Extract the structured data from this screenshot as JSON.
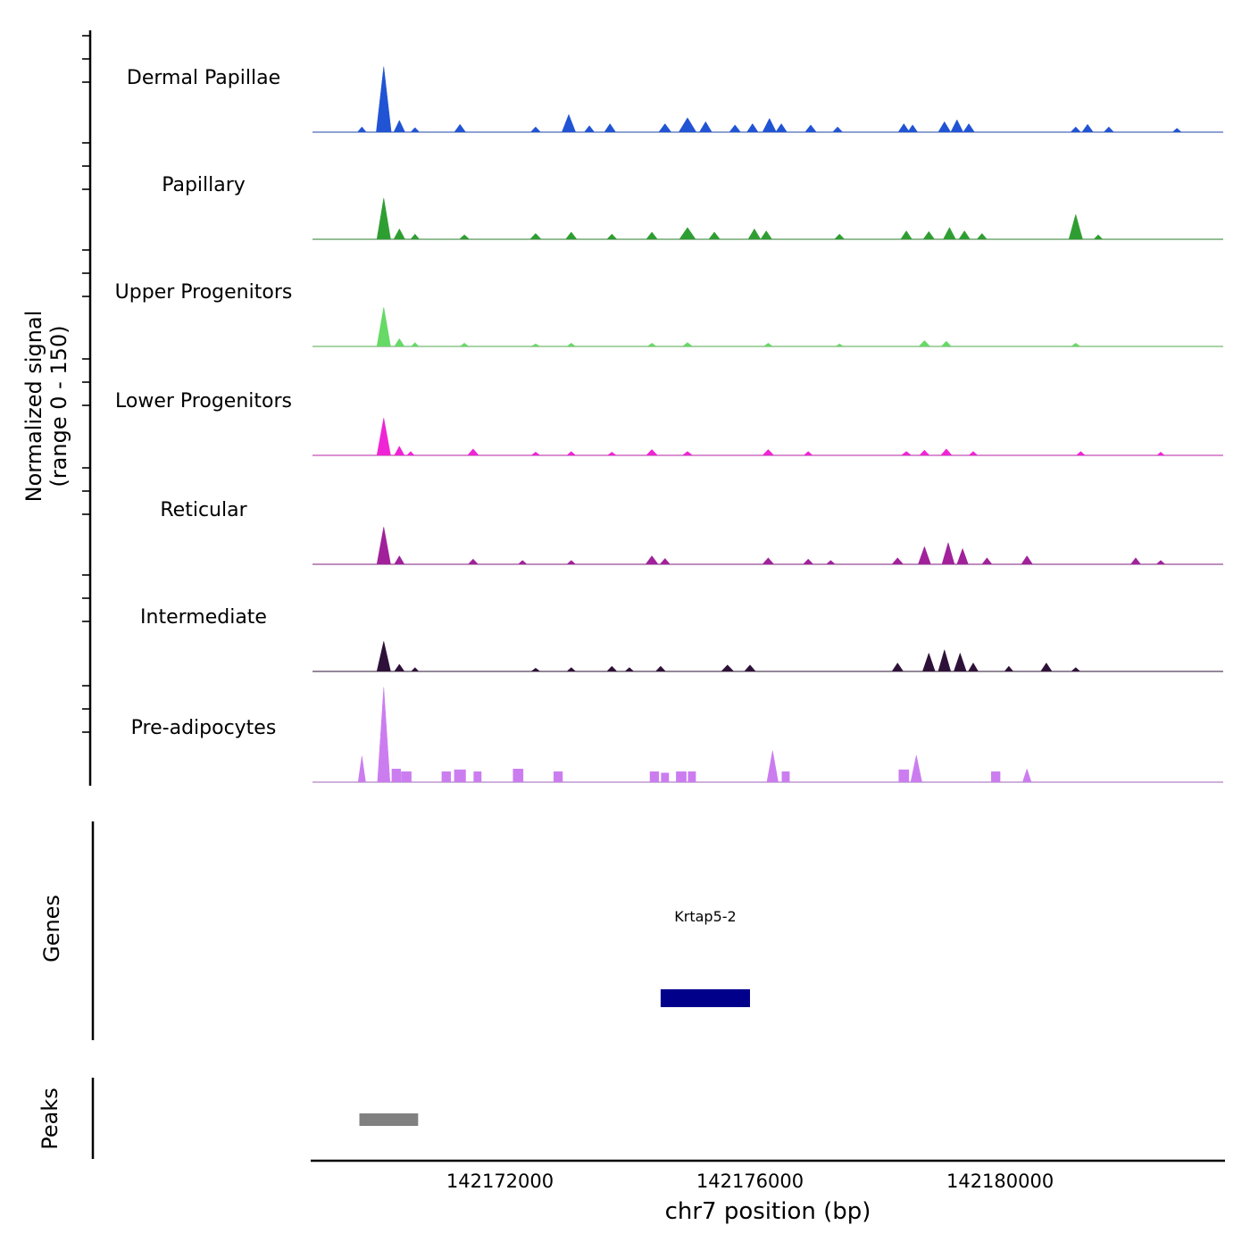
{
  "figure": {
    "y_axis_label": {
      "line1": "Normalized signal",
      "line2": "(range 0 - 150)"
    },
    "x_axis_label": "chr7 position (bp)",
    "genes_section_label": "Genes",
    "peaks_section_label": "Peaks",
    "background": "#ffffff",
    "axis_color": "#000000",
    "baseline_color": "#8c8c8c"
  },
  "chart_data": {
    "type": "area",
    "title": "",
    "xlabel": "chr7 position (bp)",
    "ylabel": "Normalized signal (range 0 - 150)",
    "ylim": [
      0,
      150
    ],
    "x_range_bp": [
      142169000,
      142183570
    ],
    "x_ticks_bp": [
      142172000,
      142176000,
      142180000
    ],
    "peak_format": "[center_bp, half_width_bp, signal_height, optional 'r' = rectangular block]",
    "tracks": [
      {
        "name": "Dermal Papillae",
        "color": "#2154d4",
        "peaks": [
          [
            142169790,
            70,
            8
          ],
          [
            142170140,
            120,
            100
          ],
          [
            142170390,
            90,
            18
          ],
          [
            142170640,
            70,
            7
          ],
          [
            142171360,
            90,
            12
          ],
          [
            142172570,
            80,
            8
          ],
          [
            142173100,
            110,
            27
          ],
          [
            142173430,
            80,
            10
          ],
          [
            142173760,
            90,
            13
          ],
          [
            142174640,
            100,
            13
          ],
          [
            142175000,
            140,
            22
          ],
          [
            142175290,
            100,
            16
          ],
          [
            142175760,
            90,
            11
          ],
          [
            142176040,
            90,
            13
          ],
          [
            142176310,
            110,
            21
          ],
          [
            142176500,
            90,
            13
          ],
          [
            142176970,
            90,
            11
          ],
          [
            142177400,
            80,
            8
          ],
          [
            142178460,
            90,
            13
          ],
          [
            142178600,
            80,
            11
          ],
          [
            142179110,
            100,
            16
          ],
          [
            142179310,
            100,
            19
          ],
          [
            142179500,
            90,
            13
          ],
          [
            142181210,
            80,
            8
          ],
          [
            142181400,
            90,
            12
          ],
          [
            142181740,
            80,
            8
          ],
          [
            142182830,
            70,
            6
          ]
        ]
      },
      {
        "name": "Papillary",
        "color": "#2f9e32",
        "peaks": [
          [
            142170140,
            110,
            63
          ],
          [
            142170390,
            90,
            16
          ],
          [
            142170640,
            70,
            8
          ],
          [
            142171430,
            80,
            7
          ],
          [
            142172570,
            90,
            9
          ],
          [
            142173140,
            90,
            11
          ],
          [
            142173790,
            80,
            8
          ],
          [
            142174430,
            90,
            11
          ],
          [
            142175000,
            130,
            18
          ],
          [
            142175430,
            90,
            11
          ],
          [
            142176070,
            100,
            16
          ],
          [
            142176260,
            90,
            13
          ],
          [
            142177430,
            80,
            8
          ],
          [
            142178500,
            90,
            13
          ],
          [
            142178860,
            90,
            12
          ],
          [
            142179190,
            100,
            18
          ],
          [
            142179430,
            90,
            13
          ],
          [
            142179710,
            80,
            9
          ],
          [
            142181210,
            110,
            38
          ],
          [
            142181570,
            70,
            7
          ]
        ]
      },
      {
        "name": "Upper Progenitors",
        "color": "#66d966",
        "peaks": [
          [
            142170140,
            110,
            60
          ],
          [
            142170390,
            80,
            12
          ],
          [
            142170640,
            60,
            6
          ],
          [
            142171430,
            70,
            5
          ],
          [
            142172570,
            70,
            4
          ],
          [
            142173140,
            70,
            5
          ],
          [
            142174430,
            70,
            5
          ],
          [
            142175000,
            80,
            6
          ],
          [
            142176290,
            70,
            5
          ],
          [
            142177430,
            60,
            4
          ],
          [
            142178790,
            90,
            9
          ],
          [
            142179140,
            80,
            8
          ],
          [
            142181210,
            70,
            5
          ]
        ]
      },
      {
        "name": "Lower Progenitors",
        "color": "#ef25d5",
        "peaks": [
          [
            142170140,
            110,
            57
          ],
          [
            142170390,
            80,
            14
          ],
          [
            142170570,
            60,
            6
          ],
          [
            142171570,
            90,
            10
          ],
          [
            142172570,
            70,
            5
          ],
          [
            142173140,
            70,
            6
          ],
          [
            142173790,
            70,
            5
          ],
          [
            142174430,
            90,
            9
          ],
          [
            142175000,
            80,
            6
          ],
          [
            142176290,
            90,
            9
          ],
          [
            142176930,
            70,
            6
          ],
          [
            142178500,
            80,
            6
          ],
          [
            142178790,
            80,
            8
          ],
          [
            142179140,
            90,
            10
          ],
          [
            142179570,
            70,
            6
          ],
          [
            142181290,
            70,
            6
          ],
          [
            142182570,
            60,
            5
          ]
        ]
      },
      {
        "name": "Reticular",
        "color": "#a1219b",
        "peaks": [
          [
            142170140,
            110,
            57
          ],
          [
            142170390,
            80,
            13
          ],
          [
            142171570,
            80,
            8
          ],
          [
            142172360,
            70,
            6
          ],
          [
            142173140,
            70,
            6
          ],
          [
            142174430,
            100,
            13
          ],
          [
            142174640,
            80,
            9
          ],
          [
            142176290,
            90,
            10
          ],
          [
            142176930,
            80,
            8
          ],
          [
            142177290,
            70,
            6
          ],
          [
            142178360,
            90,
            10
          ],
          [
            142178790,
            100,
            27
          ],
          [
            142179170,
            100,
            33
          ],
          [
            142179400,
            90,
            24
          ],
          [
            142179790,
            80,
            10
          ],
          [
            142180430,
            90,
            13
          ],
          [
            142182170,
            80,
            10
          ],
          [
            142182570,
            70,
            6
          ]
        ]
      },
      {
        "name": "Intermediate",
        "color": "#2e1138",
        "peaks": [
          [
            142170140,
            110,
            46
          ],
          [
            142170390,
            80,
            11
          ],
          [
            142170640,
            60,
            6
          ],
          [
            142172570,
            70,
            5
          ],
          [
            142173140,
            70,
            6
          ],
          [
            142173790,
            80,
            8
          ],
          [
            142174070,
            70,
            6
          ],
          [
            142174570,
            80,
            8
          ],
          [
            142175640,
            100,
            10
          ],
          [
            142176000,
            90,
            10
          ],
          [
            142178360,
            90,
            13
          ],
          [
            142178860,
            100,
            28
          ],
          [
            142179110,
            100,
            33
          ],
          [
            142179360,
            100,
            28
          ],
          [
            142179570,
            80,
            13
          ],
          [
            142180140,
            70,
            8
          ],
          [
            142180740,
            90,
            13
          ],
          [
            142181210,
            70,
            6
          ]
        ]
      },
      {
        "name": "Pre-adipocytes",
        "color": "#cb7df0",
        "peaks": [
          [
            142169790,
            60,
            40
          ],
          [
            142170140,
            100,
            145
          ],
          [
            142170340,
            70,
            20,
            "r"
          ],
          [
            142170500,
            80,
            16,
            "r"
          ],
          [
            142171140,
            70,
            16,
            "r"
          ],
          [
            142171360,
            90,
            19,
            "r"
          ],
          [
            142171640,
            60,
            16,
            "r"
          ],
          [
            142172290,
            80,
            20,
            "r"
          ],
          [
            142172930,
            70,
            16,
            "r"
          ],
          [
            142174470,
            70,
            16,
            "r"
          ],
          [
            142174640,
            60,
            14,
            "r"
          ],
          [
            142174900,
            80,
            16,
            "r"
          ],
          [
            142175070,
            60,
            16,
            "r"
          ],
          [
            142176360,
            90,
            48
          ],
          [
            142176570,
            60,
            16,
            "r"
          ],
          [
            142178460,
            80,
            19,
            "r"
          ],
          [
            142178660,
            90,
            41
          ],
          [
            142179930,
            70,
            16,
            "r"
          ],
          [
            142180430,
            70,
            20
          ]
        ]
      }
    ],
    "genes": [
      {
        "name": "Krtap5-2",
        "start_bp": 142174570,
        "end_bp": 142176000,
        "color": "#00008b"
      }
    ],
    "peaks_regions": [
      {
        "start_bp": 142169750,
        "end_bp": 142170690,
        "color": "#808080"
      }
    ]
  }
}
